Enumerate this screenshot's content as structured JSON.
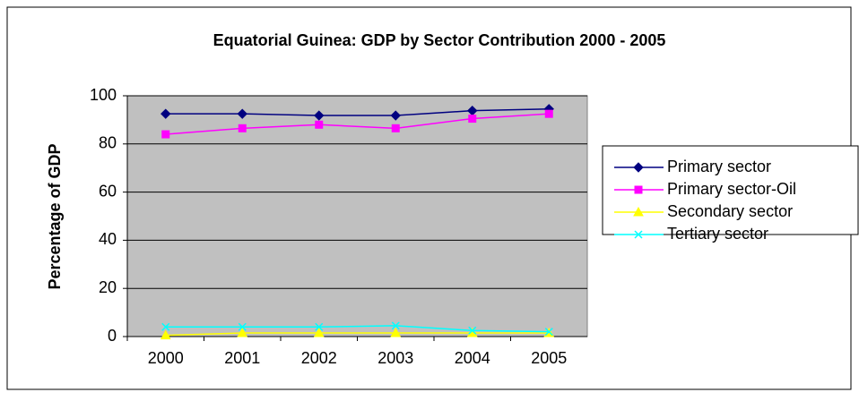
{
  "chart_data": {
    "type": "line",
    "title": "Equatorial Guinea: GDP by Sector Contribution 2000 - 2005",
    "ylabel": "Percentage of GDP",
    "categories": [
      "2000",
      "2001",
      "2002",
      "2003",
      "2004",
      "2005"
    ],
    "series": [
      {
        "name": "Primary sector",
        "color": "#000080",
        "marker": "diamond",
        "values": [
          92.5,
          92.5,
          91.8,
          91.8,
          93.8,
          94.5
        ]
      },
      {
        "name": "Primary sector-Oil",
        "color": "#ff00ff",
        "marker": "square",
        "values": [
          84,
          86.5,
          88,
          86.5,
          90.5,
          92.5
        ]
      },
      {
        "name": "Secondary sector",
        "color": "#ffff00",
        "marker": "triangle",
        "values": [
          0.5,
          1.5,
          1.5,
          1.5,
          1.5,
          1.5
        ]
      },
      {
        "name": "Tertiary sector",
        "color": "#00ffff",
        "marker": "x",
        "values": [
          4,
          4,
          4,
          4.5,
          2.5,
          2
        ]
      }
    ],
    "ylim": [
      0,
      100
    ],
    "yticks": [
      0,
      20,
      40,
      60,
      80,
      100
    ],
    "grid": true,
    "legend": "right"
  }
}
